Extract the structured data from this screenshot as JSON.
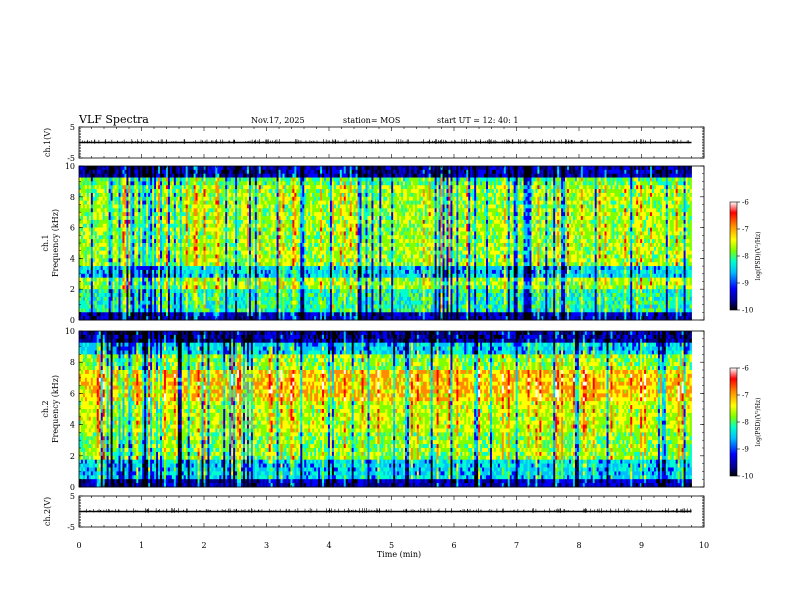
{
  "header": {
    "title": "VLF Spectra",
    "date": "Nov.17, 2025",
    "station": "station= MOS",
    "start": "start  UT =   12: 40: 1"
  },
  "colors": {
    "colormap": [
      "#000000",
      "#00008b",
      "#0000ff",
      "#00bfff",
      "#00ffcc",
      "#7fff00",
      "#ffff00",
      "#ff8c00",
      "#ff0000",
      "#ffffff"
    ],
    "waveform": "#000000"
  },
  "chart_data": [
    {
      "id": "ch1-waveform",
      "type": "line",
      "ylabel": "ch.1(V)",
      "ylim": [
        -5,
        5
      ],
      "yticks": [
        "5",
        "-5"
      ],
      "x": [
        0,
        9.8
      ],
      "values": [
        0,
        0
      ],
      "description_of_fill": "near-flat waveform at ~0 V"
    },
    {
      "id": "ch1-spectrogram",
      "type": "heatmap",
      "ylabel": "ch.1\nFrequency (kHz)",
      "ylabel_lines": [
        "ch.1",
        "Frequency (kHz)"
      ],
      "ylim": [
        0,
        10
      ],
      "yticks": [
        "0",
        "2",
        "4",
        "6",
        "8",
        "10"
      ],
      "xlim": [
        0,
        10
      ],
      "data_xmax": 9.8,
      "colorbar": {
        "label": "log(PSD)(V²/Hz)",
        "range": [
          -10,
          -6
        ],
        "ticks": [
          "-6",
          "-7",
          "-8",
          "-9",
          "-10"
        ]
      }
    },
    {
      "id": "ch2-spectrogram",
      "type": "heatmap",
      "ylabel_lines": [
        "ch.2",
        "Frequency (kHz)"
      ],
      "ylim": [
        0,
        10
      ],
      "yticks": [
        "0",
        "2",
        "4",
        "6",
        "8",
        "10"
      ],
      "xlim": [
        0,
        10
      ],
      "data_xmax": 9.8,
      "colorbar": {
        "label": "log(PSD)(V²/Hz)",
        "range": [
          -10,
          -6
        ],
        "ticks": [
          "-6",
          "-7",
          "-8",
          "-9",
          "-10"
        ]
      }
    },
    {
      "id": "ch2-waveform",
      "type": "line",
      "ylabel": "ch.2(V)",
      "ylim": [
        -5,
        5
      ],
      "yticks": [
        "5",
        "-5"
      ],
      "x": [
        0,
        9.8
      ],
      "values": [
        0,
        0
      ]
    }
  ],
  "xaxis": {
    "label": "Time  (min)",
    "range": [
      0,
      10
    ],
    "ticks": [
      "0",
      "1",
      "2",
      "3",
      "4",
      "5",
      "6",
      "7",
      "8",
      "9",
      "10"
    ]
  }
}
